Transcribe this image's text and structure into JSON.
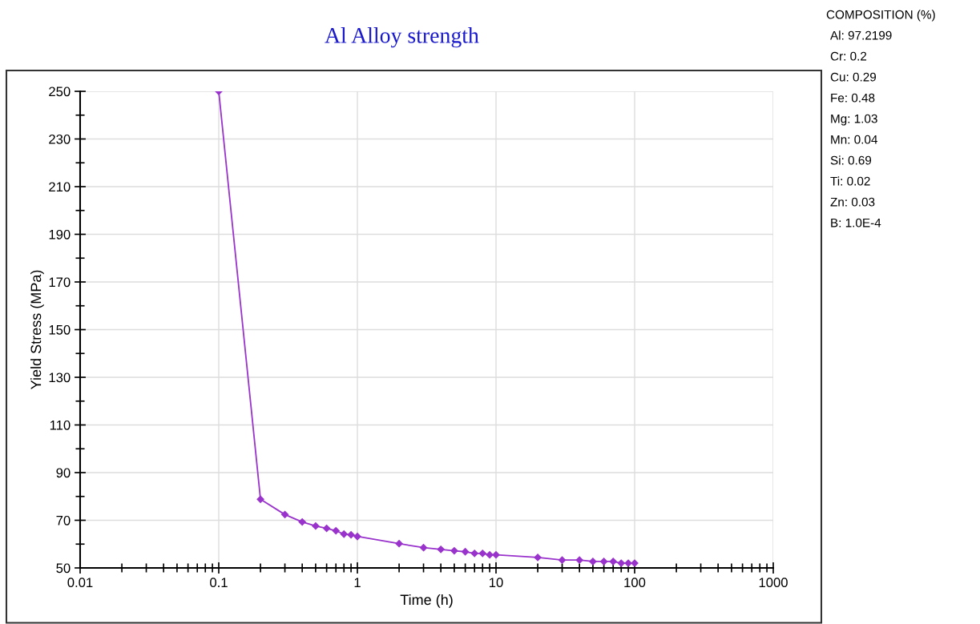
{
  "chart_data": {
    "type": "line",
    "title": "Al Alloy strength",
    "xlabel": "Time (h)",
    "ylabel": "Yield Stress (MPa)",
    "x": [
      0.1,
      0.2,
      0.3,
      0.4,
      0.5,
      0.6,
      0.7,
      0.8,
      0.9,
      1,
      2,
      3,
      4,
      5,
      6,
      7,
      8,
      9,
      10,
      20,
      30,
      40,
      50,
      60,
      70,
      80,
      90,
      100
    ],
    "series": [
      {
        "color": "#9933cc",
        "values": [
          250,
          78.8,
          72.4,
          69.3,
          67.6,
          66.6,
          65.6,
          64.2,
          63.9,
          63.2,
          60.2,
          58.5,
          57.8,
          57.2,
          56.8,
          56.1,
          56.1,
          55.5,
          55.5,
          54.4,
          53.3,
          53.3,
          52.7,
          52.7,
          52.7,
          52,
          52,
          52
        ]
      }
    ],
    "log": "x",
    "xlim": [
      0.01,
      1000
    ],
    "xticks": [
      0.01,
      0.1,
      1,
      10,
      100,
      1000
    ],
    "ylim": [
      50,
      250
    ],
    "yticks": [
      50,
      70,
      90,
      110,
      130,
      150,
      170,
      190,
      210,
      230,
      250
    ],
    "grid": true,
    "marker": "diamond",
    "line_style": "solid",
    "annotations": [
      "COMPOSITION (%)",
      "Al: 97.2199",
      "Cr: 0.2",
      "Cu: 0.29",
      "Fe: 0.48",
      "Mg: 1.03",
      "Mn: 0.04",
      "Si: 0.69",
      "Ti: 0.02",
      "Zn: 0.03",
      "B: 1.0E-4"
    ]
  }
}
